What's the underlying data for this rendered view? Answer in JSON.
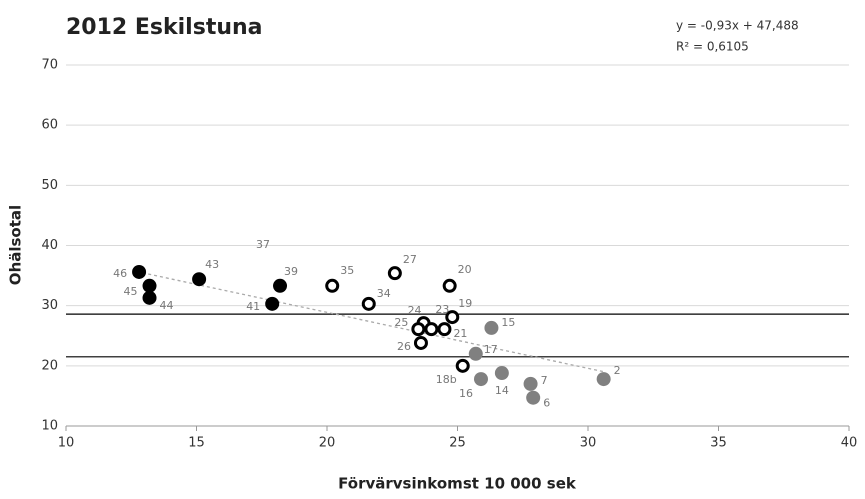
{
  "chart_data": {
    "type": "scatter",
    "title": "2012 Eskilstuna",
    "xlabel": "Förvärvsinkomst 10 000 sek",
    "ylabel": "Ohälsotal",
    "annotations": [
      "y = -0,93x + 47,488",
      "R² = 0,6105",
      "37"
    ],
    "xlim": [
      10,
      40
    ],
    "xticks": [
      10,
      15,
      20,
      25,
      30,
      35,
      40
    ],
    "ylim": [
      10,
      70
    ],
    "yticks": [
      10,
      20,
      30,
      40,
      50,
      60,
      70
    ],
    "grid": true,
    "hlines": [
      28.6,
      21.5
    ],
    "trendline": {
      "slope": -0.93,
      "intercept": 47.488,
      "x": [
        12.7,
        30.6
      ],
      "color": "#aaaaaa"
    },
    "series": [
      {
        "color": "#000000",
        "filled": true,
        "x": [
          12.8,
          13.2,
          13.2,
          15.1,
          18.2,
          17.9
        ],
        "values": [
          35.6,
          33.3,
          31.3,
          34.4,
          33.3,
          30.3
        ],
        "labels": [
          "46",
          "45",
          "44",
          "43",
          "39",
          "41"
        ]
      },
      {
        "color": "#000000",
        "filled": false,
        "x": [
          20.2,
          21.6,
          22.6,
          24.7,
          24.8,
          23.7,
          24.0,
          24.5,
          23.5,
          23.6,
          25.2
        ],
        "values": [
          33.3,
          30.3,
          35.4,
          33.3,
          28.1,
          27.1,
          26.1,
          26.1,
          26.1,
          23.8,
          20.0
        ],
        "labels": [
          "35",
          "34",
          "27",
          "20",
          "19",
          "24",
          "23",
          "21",
          "25",
          "26",
          "18b"
        ]
      },
      {
        "color": "#808080",
        "filled": true,
        "x": [
          26.3,
          25.7,
          25.9,
          26.7,
          27.8,
          27.9,
          30.6
        ],
        "values": [
          26.3,
          22.0,
          17.8,
          18.8,
          17.0,
          14.7,
          17.8
        ],
        "labels": [
          "15",
          "17",
          "16",
          "14",
          "7",
          "6",
          "2"
        ]
      }
    ]
  }
}
